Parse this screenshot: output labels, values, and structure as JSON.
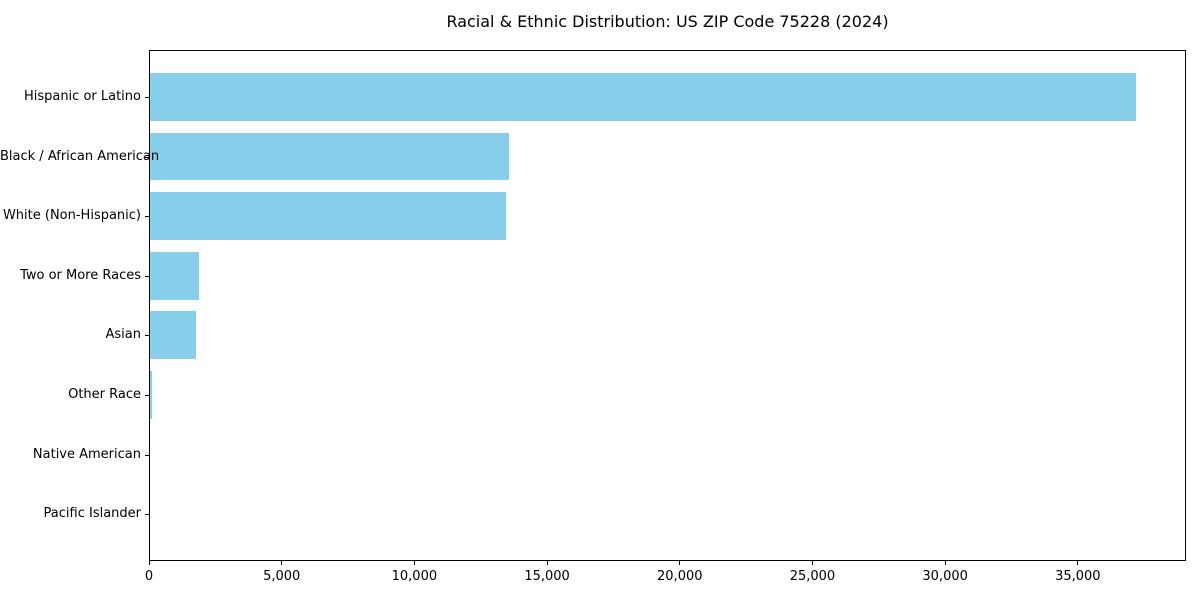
{
  "title": "Racial & Ethnic Distribution: US ZIP Code 75228 (2024)",
  "chart_data": {
    "type": "bar",
    "orientation": "horizontal",
    "title": "Racial & Ethnic Distribution: US ZIP Code 75228 (2024)",
    "categories": [
      "Hispanic or Latino",
      "Black / African American",
      "White (Non-Hispanic)",
      "Two or More Races",
      "Asian",
      "Other Race",
      "Native American",
      "Pacific Islander"
    ],
    "values": [
      37150,
      13510,
      13400,
      1840,
      1730,
      75,
      0,
      0
    ],
    "categories_order": "top-to-bottom",
    "xlabel": "",
    "ylabel": "",
    "xlim": [
      0,
      39000
    ],
    "xticks": [
      0,
      5000,
      10000,
      15000,
      20000,
      25000,
      30000,
      35000
    ],
    "xtick_labels": [
      "0",
      "5,000",
      "10,000",
      "15,000",
      "20,000",
      "25,000",
      "30,000",
      "35,000"
    ],
    "grid": false,
    "legend": "none",
    "bar_color": "#87CEEB",
    "axis_color": "#000000",
    "text_color": "#000000",
    "background_color": "#FFFFFF"
  }
}
